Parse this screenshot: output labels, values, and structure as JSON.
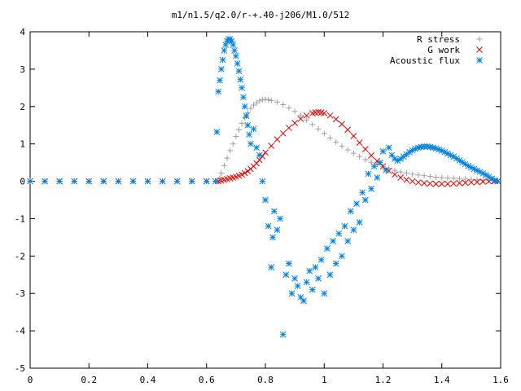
{
  "chart_data": {
    "type": "scatter",
    "title": "m1/n1.5/q2.0/r-+.40-j206/M1.0/512",
    "xlim": [
      0,
      1.6
    ],
    "ylim": [
      -5,
      4
    ],
    "x_ticks": [
      0,
      0.2,
      0.4,
      0.6,
      0.8,
      1,
      1.2,
      1.4,
      1.6
    ],
    "x_tick_labels": [
      "0",
      "0.2",
      "0.4",
      "0.6",
      "0.8",
      "1",
      "1.2",
      "1.4",
      "1.6"
    ],
    "y_ticks": [
      -5,
      -4,
      -3,
      -2,
      -1,
      0,
      1,
      2,
      3,
      4
    ],
    "y_tick_labels": [
      "-5",
      "-4",
      "-3",
      "-2",
      "-1",
      "0",
      "1",
      "2",
      "3",
      "4"
    ],
    "grid": false,
    "legend_position": "top-right",
    "series": [
      {
        "name": "R stress",
        "marker": "plus",
        "color": "#a0a0a0",
        "points": [
          [
            0.0,
            0
          ],
          [
            0.05,
            0
          ],
          [
            0.1,
            0
          ],
          [
            0.15,
            0
          ],
          [
            0.2,
            0
          ],
          [
            0.25,
            0
          ],
          [
            0.3,
            0
          ],
          [
            0.35,
            0
          ],
          [
            0.4,
            0
          ],
          [
            0.45,
            0
          ],
          [
            0.5,
            0
          ],
          [
            0.55,
            0
          ],
          [
            0.6,
            0
          ],
          [
            0.64,
            0
          ],
          [
            0.645,
            0.08
          ],
          [
            0.65,
            0.22
          ],
          [
            0.66,
            0.42
          ],
          [
            0.67,
            0.62
          ],
          [
            0.68,
            0.82
          ],
          [
            0.69,
            1.0
          ],
          [
            0.7,
            1.2
          ],
          [
            0.71,
            1.38
          ],
          [
            0.72,
            1.55
          ],
          [
            0.73,
            1.7
          ],
          [
            0.74,
            1.83
          ],
          [
            0.75,
            1.95
          ],
          [
            0.76,
            2.04
          ],
          [
            0.77,
            2.1
          ],
          [
            0.78,
            2.15
          ],
          [
            0.79,
            2.18
          ],
          [
            0.8,
            2.19
          ],
          [
            0.81,
            2.18
          ],
          [
            0.82,
            2.16
          ],
          [
            0.84,
            2.12
          ],
          [
            0.86,
            2.05
          ],
          [
            0.88,
            1.96
          ],
          [
            0.9,
            1.87
          ],
          [
            0.92,
            1.76
          ],
          [
            0.94,
            1.64
          ],
          [
            0.96,
            1.52
          ],
          [
            0.98,
            1.4
          ],
          [
            1.0,
            1.28
          ],
          [
            1.02,
            1.16
          ],
          [
            1.04,
            1.05
          ],
          [
            1.06,
            0.94
          ],
          [
            1.08,
            0.84
          ],
          [
            1.1,
            0.75
          ],
          [
            1.12,
            0.66
          ],
          [
            1.14,
            0.58
          ],
          [
            1.16,
            0.51
          ],
          [
            1.18,
            0.45
          ],
          [
            1.2,
            0.39
          ],
          [
            1.22,
            0.34
          ],
          [
            1.24,
            0.29
          ],
          [
            1.26,
            0.25
          ],
          [
            1.28,
            0.22
          ],
          [
            1.3,
            0.19
          ],
          [
            1.32,
            0.17
          ],
          [
            1.34,
            0.15
          ],
          [
            1.36,
            0.13
          ],
          [
            1.38,
            0.11
          ],
          [
            1.4,
            0.1
          ],
          [
            1.42,
            0.09
          ],
          [
            1.44,
            0.08
          ],
          [
            1.46,
            0.07
          ],
          [
            1.48,
            0.06
          ],
          [
            1.5,
            0.05
          ],
          [
            1.52,
            0.04
          ],
          [
            1.54,
            0.03
          ],
          [
            1.56,
            0.02
          ],
          [
            1.58,
            0.01
          ],
          [
            1.59,
            0.0
          ]
        ]
      },
      {
        "name": "G work",
        "marker": "cross",
        "color": "#e00000",
        "points": [
          [
            0.0,
            0
          ],
          [
            0.05,
            0
          ],
          [
            0.1,
            0
          ],
          [
            0.15,
            0
          ],
          [
            0.2,
            0
          ],
          [
            0.25,
            0
          ],
          [
            0.3,
            0
          ],
          [
            0.35,
            0
          ],
          [
            0.4,
            0
          ],
          [
            0.45,
            0
          ],
          [
            0.5,
            0
          ],
          [
            0.55,
            0
          ],
          [
            0.6,
            0
          ],
          [
            0.64,
            0
          ],
          [
            0.65,
            0.02
          ],
          [
            0.66,
            0.04
          ],
          [
            0.67,
            0.06
          ],
          [
            0.68,
            0.08
          ],
          [
            0.69,
            0.1
          ],
          [
            0.7,
            0.12
          ],
          [
            0.71,
            0.15
          ],
          [
            0.72,
            0.18
          ],
          [
            0.73,
            0.22
          ],
          [
            0.74,
            0.27
          ],
          [
            0.75,
            0.33
          ],
          [
            0.76,
            0.4
          ],
          [
            0.77,
            0.48
          ],
          [
            0.78,
            0.57
          ],
          [
            0.79,
            0.67
          ],
          [
            0.8,
            0.77
          ],
          [
            0.82,
            0.95
          ],
          [
            0.84,
            1.12
          ],
          [
            0.86,
            1.28
          ],
          [
            0.88,
            1.43
          ],
          [
            0.9,
            1.56
          ],
          [
            0.92,
            1.67
          ],
          [
            0.94,
            1.76
          ],
          [
            0.96,
            1.82
          ],
          [
            0.97,
            1.84
          ],
          [
            0.98,
            1.85
          ],
          [
            0.99,
            1.84
          ],
          [
            1.0,
            1.82
          ],
          [
            1.02,
            1.76
          ],
          [
            1.04,
            1.66
          ],
          [
            1.06,
            1.53
          ],
          [
            1.08,
            1.38
          ],
          [
            1.1,
            1.21
          ],
          [
            1.12,
            1.03
          ],
          [
            1.14,
            0.86
          ],
          [
            1.16,
            0.69
          ],
          [
            1.18,
            0.54
          ],
          [
            1.2,
            0.4
          ],
          [
            1.22,
            0.28
          ],
          [
            1.24,
            0.18
          ],
          [
            1.26,
            0.1
          ],
          [
            1.28,
            0.04
          ],
          [
            1.3,
            0.0
          ],
          [
            1.32,
            -0.03
          ],
          [
            1.34,
            -0.05
          ],
          [
            1.36,
            -0.06
          ],
          [
            1.38,
            -0.07
          ],
          [
            1.4,
            -0.07
          ],
          [
            1.42,
            -0.07
          ],
          [
            1.44,
            -0.06
          ],
          [
            1.46,
            -0.05
          ],
          [
            1.48,
            -0.04
          ],
          [
            1.5,
            -0.03
          ],
          [
            1.52,
            -0.02
          ],
          [
            1.54,
            -0.01
          ],
          [
            1.56,
            0.0
          ],
          [
            1.58,
            0.0
          ],
          [
            1.59,
            0.0
          ]
        ]
      },
      {
        "name": "Acoustic flux",
        "marker": "star",
        "color": "#0080e0",
        "points": [
          [
            0.0,
            0
          ],
          [
            0.05,
            0
          ],
          [
            0.1,
            0
          ],
          [
            0.15,
            0
          ],
          [
            0.2,
            0
          ],
          [
            0.25,
            0
          ],
          [
            0.3,
            0
          ],
          [
            0.35,
            0
          ],
          [
            0.4,
            0
          ],
          [
            0.45,
            0
          ],
          [
            0.5,
            0
          ],
          [
            0.55,
            0
          ],
          [
            0.6,
            0
          ],
          [
            0.63,
            0
          ],
          [
            0.635,
            1.32
          ],
          [
            0.64,
            2.4
          ],
          [
            0.645,
            2.7
          ],
          [
            0.65,
            3.0
          ],
          [
            0.655,
            3.25
          ],
          [
            0.66,
            3.5
          ],
          [
            0.665,
            3.65
          ],
          [
            0.67,
            3.75
          ],
          [
            0.675,
            3.8
          ],
          [
            0.68,
            3.8
          ],
          [
            0.685,
            3.75
          ],
          [
            0.69,
            3.65
          ],
          [
            0.695,
            3.5
          ],
          [
            0.7,
            3.35
          ],
          [
            0.705,
            3.15
          ],
          [
            0.71,
            2.95
          ],
          [
            0.715,
            2.72
          ],
          [
            0.72,
            2.5
          ],
          [
            0.725,
            2.25
          ],
          [
            0.73,
            2.0
          ],
          [
            0.735,
            1.75
          ],
          [
            0.74,
            1.5
          ],
          [
            0.745,
            1.25
          ],
          [
            0.75,
            1.0
          ],
          [
            0.76,
            1.4
          ],
          [
            0.77,
            0.9
          ],
          [
            0.78,
            0.7
          ],
          [
            0.79,
            0.0
          ],
          [
            0.8,
            -0.5
          ],
          [
            0.81,
            -1.2
          ],
          [
            0.82,
            -2.3
          ],
          [
            0.825,
            -1.5
          ],
          [
            0.83,
            -0.8
          ],
          [
            0.84,
            -1.3
          ],
          [
            0.85,
            -1.0
          ],
          [
            0.86,
            -4.1
          ],
          [
            0.87,
            -2.5
          ],
          [
            0.88,
            -2.2
          ],
          [
            0.89,
            -3.0
          ],
          [
            0.9,
            -2.6
          ],
          [
            0.91,
            -2.8
          ],
          [
            0.92,
            -3.1
          ],
          [
            0.93,
            -3.2
          ],
          [
            0.94,
            -2.7
          ],
          [
            0.95,
            -2.4
          ],
          [
            0.96,
            -2.9
          ],
          [
            0.97,
            -2.3
          ],
          [
            0.98,
            -2.6
          ],
          [
            0.99,
            -2.1
          ],
          [
            1.0,
            -3.0
          ],
          [
            1.01,
            -1.8
          ],
          [
            1.02,
            -2.5
          ],
          [
            1.03,
            -1.6
          ],
          [
            1.04,
            -2.2
          ],
          [
            1.05,
            -1.4
          ],
          [
            1.06,
            -2.0
          ],
          [
            1.07,
            -1.2
          ],
          [
            1.08,
            -1.6
          ],
          [
            1.09,
            -0.8
          ],
          [
            1.1,
            -1.3
          ],
          [
            1.11,
            -0.6
          ],
          [
            1.12,
            -1.1
          ],
          [
            1.13,
            -0.3
          ],
          [
            1.14,
            -0.5
          ],
          [
            1.15,
            0.2
          ],
          [
            1.16,
            -0.2
          ],
          [
            1.17,
            0.4
          ],
          [
            1.18,
            0.1
          ],
          [
            1.19,
            0.5
          ],
          [
            1.2,
            0.8
          ],
          [
            1.21,
            0.3
          ],
          [
            1.22,
            0.9
          ],
          [
            1.23,
            0.7
          ],
          [
            1.24,
            0.6
          ],
          [
            1.25,
            0.55
          ],
          [
            1.26,
            0.6
          ],
          [
            1.27,
            0.66
          ],
          [
            1.28,
            0.72
          ],
          [
            1.29,
            0.78
          ],
          [
            1.3,
            0.83
          ],
          [
            1.31,
            0.87
          ],
          [
            1.32,
            0.9
          ],
          [
            1.33,
            0.92
          ],
          [
            1.34,
            0.93
          ],
          [
            1.35,
            0.93
          ],
          [
            1.36,
            0.92
          ],
          [
            1.37,
            0.9
          ],
          [
            1.38,
            0.88
          ],
          [
            1.39,
            0.85
          ],
          [
            1.4,
            0.82
          ],
          [
            1.41,
            0.78
          ],
          [
            1.42,
            0.74
          ],
          [
            1.43,
            0.7
          ],
          [
            1.44,
            0.66
          ],
          [
            1.45,
            0.61
          ],
          [
            1.46,
            0.56
          ],
          [
            1.47,
            0.51
          ],
          [
            1.48,
            0.46
          ],
          [
            1.49,
            0.41
          ],
          [
            1.5,
            0.37
          ],
          [
            1.51,
            0.33
          ],
          [
            1.52,
            0.29
          ],
          [
            1.53,
            0.25
          ],
          [
            1.54,
            0.21
          ],
          [
            1.55,
            0.17
          ],
          [
            1.56,
            0.12
          ],
          [
            1.57,
            0.07
          ],
          [
            1.58,
            0.03
          ],
          [
            1.59,
            0.0
          ]
        ]
      }
    ]
  }
}
